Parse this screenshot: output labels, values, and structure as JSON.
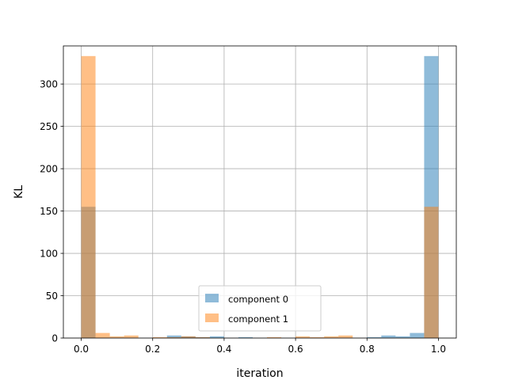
{
  "chart_data": {
    "type": "bar",
    "xlabel": "iteration",
    "ylabel": "KL",
    "xlim": [
      -0.05,
      1.05
    ],
    "ylim": [
      0,
      345
    ],
    "xticks": [
      "0.0",
      "0.2",
      "0.4",
      "0.6",
      "0.8",
      "1.0"
    ],
    "yticks": [
      "0",
      "50",
      "100",
      "150",
      "200",
      "250",
      "300"
    ],
    "grid": true,
    "legend_position": "lower-center",
    "bin_edges": [
      0.0,
      0.04,
      0.08,
      0.12,
      0.16,
      0.2,
      0.24,
      0.28,
      0.32,
      0.36,
      0.4,
      0.44,
      0.48,
      0.52,
      0.56,
      0.6,
      0.64,
      0.68,
      0.72,
      0.76,
      0.8,
      0.84,
      0.88,
      0.92,
      0.96,
      1.0
    ],
    "series": [
      {
        "name": "component 0",
        "color": "#1f77b4",
        "opacity": 0.5,
        "values": [
          155,
          0,
          0,
          0,
          0,
          0,
          3,
          2,
          1,
          2,
          0,
          1,
          0,
          0,
          0,
          0,
          0,
          0,
          0,
          0,
          1,
          3,
          2,
          6,
          333
        ]
      },
      {
        "name": "component 1",
        "color": "#ff7f0e",
        "opacity": 0.5,
        "values": [
          333,
          6,
          2,
          3,
          0,
          1,
          1,
          2,
          1,
          0,
          0,
          0,
          0,
          1,
          0,
          2,
          1,
          2,
          3,
          0,
          0,
          0,
          0,
          0,
          155
        ]
      }
    ]
  }
}
